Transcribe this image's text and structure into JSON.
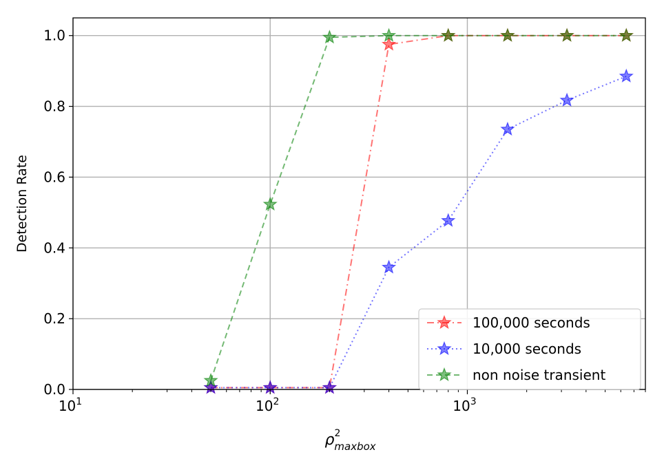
{
  "chart_data": {
    "type": "line",
    "title": "",
    "xlabel": {
      "base": "ρ",
      "superscript": "2",
      "subscript": "maxbox"
    },
    "ylabel": "Detection Rate",
    "xscale": "log",
    "xlim": [
      10,
      8000
    ],
    "ylim": [
      0.0,
      1.05
    ],
    "grid": true,
    "legend_position": "lower right",
    "xticks": [
      {
        "value": 10,
        "base": "10",
        "exp": "1"
      },
      {
        "value": 100,
        "base": "10",
        "exp": "2"
      },
      {
        "value": 1000,
        "base": "10",
        "exp": "3"
      }
    ],
    "yticks": [
      {
        "value": 0.0,
        "label": "0.0"
      },
      {
        "value": 0.2,
        "label": "0.2"
      },
      {
        "value": 0.4,
        "label": "0.4"
      },
      {
        "value": 0.6,
        "label": "0.6"
      },
      {
        "value": 0.8,
        "label": "0.8"
      },
      {
        "value": 1.0,
        "label": "1.0"
      }
    ],
    "series": [
      {
        "name": "100,000 seconds",
        "color": "#ff0000",
        "linestyle": "dashdot",
        "marker": "star",
        "x": [
          50,
          100,
          200,
          400,
          800,
          1600,
          3200,
          6400
        ],
        "y": [
          0.005,
          0.005,
          0.005,
          0.975,
          1.0,
          1.0,
          1.0,
          1.0
        ]
      },
      {
        "name": "10,000 seconds",
        "color": "#0000ff",
        "linestyle": "dotted",
        "marker": "star",
        "x": [
          50,
          100,
          200,
          400,
          800,
          1600,
          3200,
          6400
        ],
        "y": [
          0.005,
          0.005,
          0.005,
          0.345,
          0.477,
          0.735,
          0.817,
          0.885
        ]
      },
      {
        "name": "non noise transient",
        "color": "#008000",
        "linestyle": "dashed",
        "marker": "star",
        "x": [
          50,
          100,
          200,
          400,
          800,
          1600,
          3200,
          6400
        ],
        "y": [
          0.025,
          0.523,
          0.995,
          1.0,
          1.0,
          1.0,
          1.0,
          1.0
        ]
      }
    ]
  }
}
